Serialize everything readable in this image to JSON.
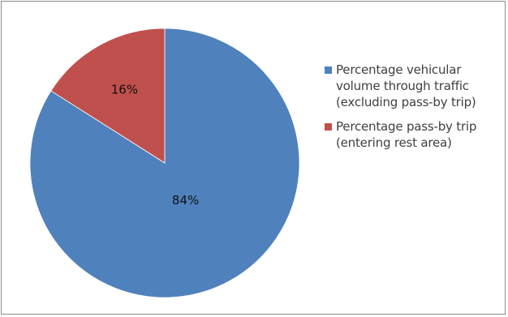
{
  "chart_data": {
    "type": "pie",
    "title": "",
    "slices": [
      {
        "label": "Percentage vehicular volume through traffic (excluding pass-by trip)",
        "value": 84,
        "data_label": "84%",
        "color": "#4f81bd"
      },
      {
        "label": "Percentage pass-by trip (entering rest area)",
        "value": 16,
        "data_label": "16%",
        "color": "#c0504d"
      }
    ],
    "legend_position": "right",
    "grid": false
  }
}
